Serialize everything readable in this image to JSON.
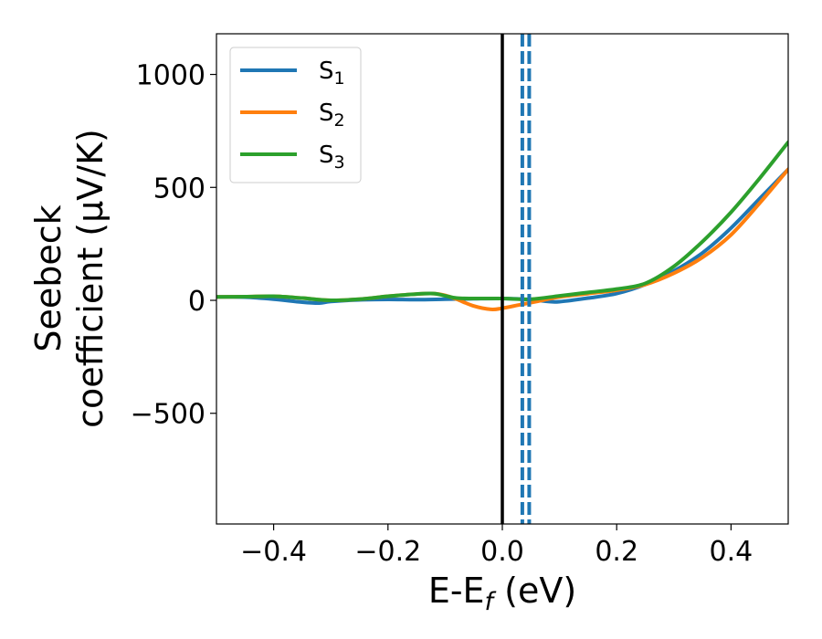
{
  "chart_data": {
    "type": "line",
    "xlabel": {
      "main": "E-E",
      "sub": "f",
      "unit": " (eV)"
    },
    "ylabel": {
      "line1": "Seebeck",
      "line2": "coefficient  (μV/K)"
    },
    "xlim": [
      -0.5,
      0.5
    ],
    "ylim": [
      -990,
      1180
    ],
    "xticks": [
      -0.4,
      -0.2,
      0.0,
      0.2,
      0.4
    ],
    "xtick_labels": [
      "−0.4",
      "−0.2",
      "0.0",
      "0.2",
      "0.4"
    ],
    "yticks": [
      -500,
      0,
      500,
      1000
    ],
    "ytick_labels": [
      "−500",
      "0",
      "500",
      "1000"
    ],
    "grid": false,
    "legend_position": "upper-left",
    "fermi_line": {
      "x": 0.0,
      "color": "#000000"
    },
    "dashed_lines": {
      "x": [
        0.035,
        0.047
      ],
      "color": "#1f77b4"
    },
    "series": [
      {
        "name": "S",
        "sub": "1",
        "color": "#1f77b4",
        "x": [
          -0.5,
          -0.45,
          -0.4,
          -0.35,
          -0.32,
          -0.3,
          -0.25,
          -0.2,
          -0.15,
          -0.1,
          -0.05,
          0.0,
          0.05,
          0.08,
          0.1,
          0.15,
          0.2,
          0.25,
          0.3,
          0.35,
          0.4,
          0.45,
          0.5
        ],
        "y": [
          15,
          14,
          5,
          -8,
          -12,
          -5,
          2,
          4,
          3,
          5,
          7,
          8,
          3,
          -5,
          -6,
          10,
          30,
          70,
          130,
          210,
          320,
          450,
          580
        ]
      },
      {
        "name": "S",
        "sub": "2",
        "color": "#ff7f0e",
        "x": [
          -0.5,
          -0.45,
          -0.4,
          -0.35,
          -0.3,
          -0.25,
          -0.2,
          -0.15,
          -0.12,
          -0.1,
          -0.08,
          -0.05,
          -0.02,
          0.0,
          0.03,
          0.06,
          0.1,
          0.15,
          0.2,
          0.25,
          0.3,
          0.35,
          0.4,
          0.45,
          0.5
        ],
        "y": [
          15,
          16,
          18,
          10,
          0,
          5,
          18,
          28,
          30,
          22,
          5,
          -25,
          -40,
          -35,
          -20,
          -5,
          15,
          30,
          45,
          70,
          120,
          190,
          290,
          430,
          580
        ]
      },
      {
        "name": "S",
        "sub": "3",
        "color": "#2ca02c",
        "x": [
          -0.5,
          -0.45,
          -0.4,
          -0.35,
          -0.3,
          -0.25,
          -0.2,
          -0.15,
          -0.12,
          -0.1,
          -0.08,
          -0.05,
          0.0,
          0.05,
          0.1,
          0.15,
          0.2,
          0.25,
          0.3,
          0.35,
          0.4,
          0.45,
          0.5
        ],
        "y": [
          15,
          16,
          18,
          10,
          0,
          5,
          18,
          28,
          30,
          20,
          10,
          8,
          8,
          5,
          20,
          35,
          50,
          75,
          150,
          260,
          390,
          540,
          700
        ]
      }
    ]
  }
}
